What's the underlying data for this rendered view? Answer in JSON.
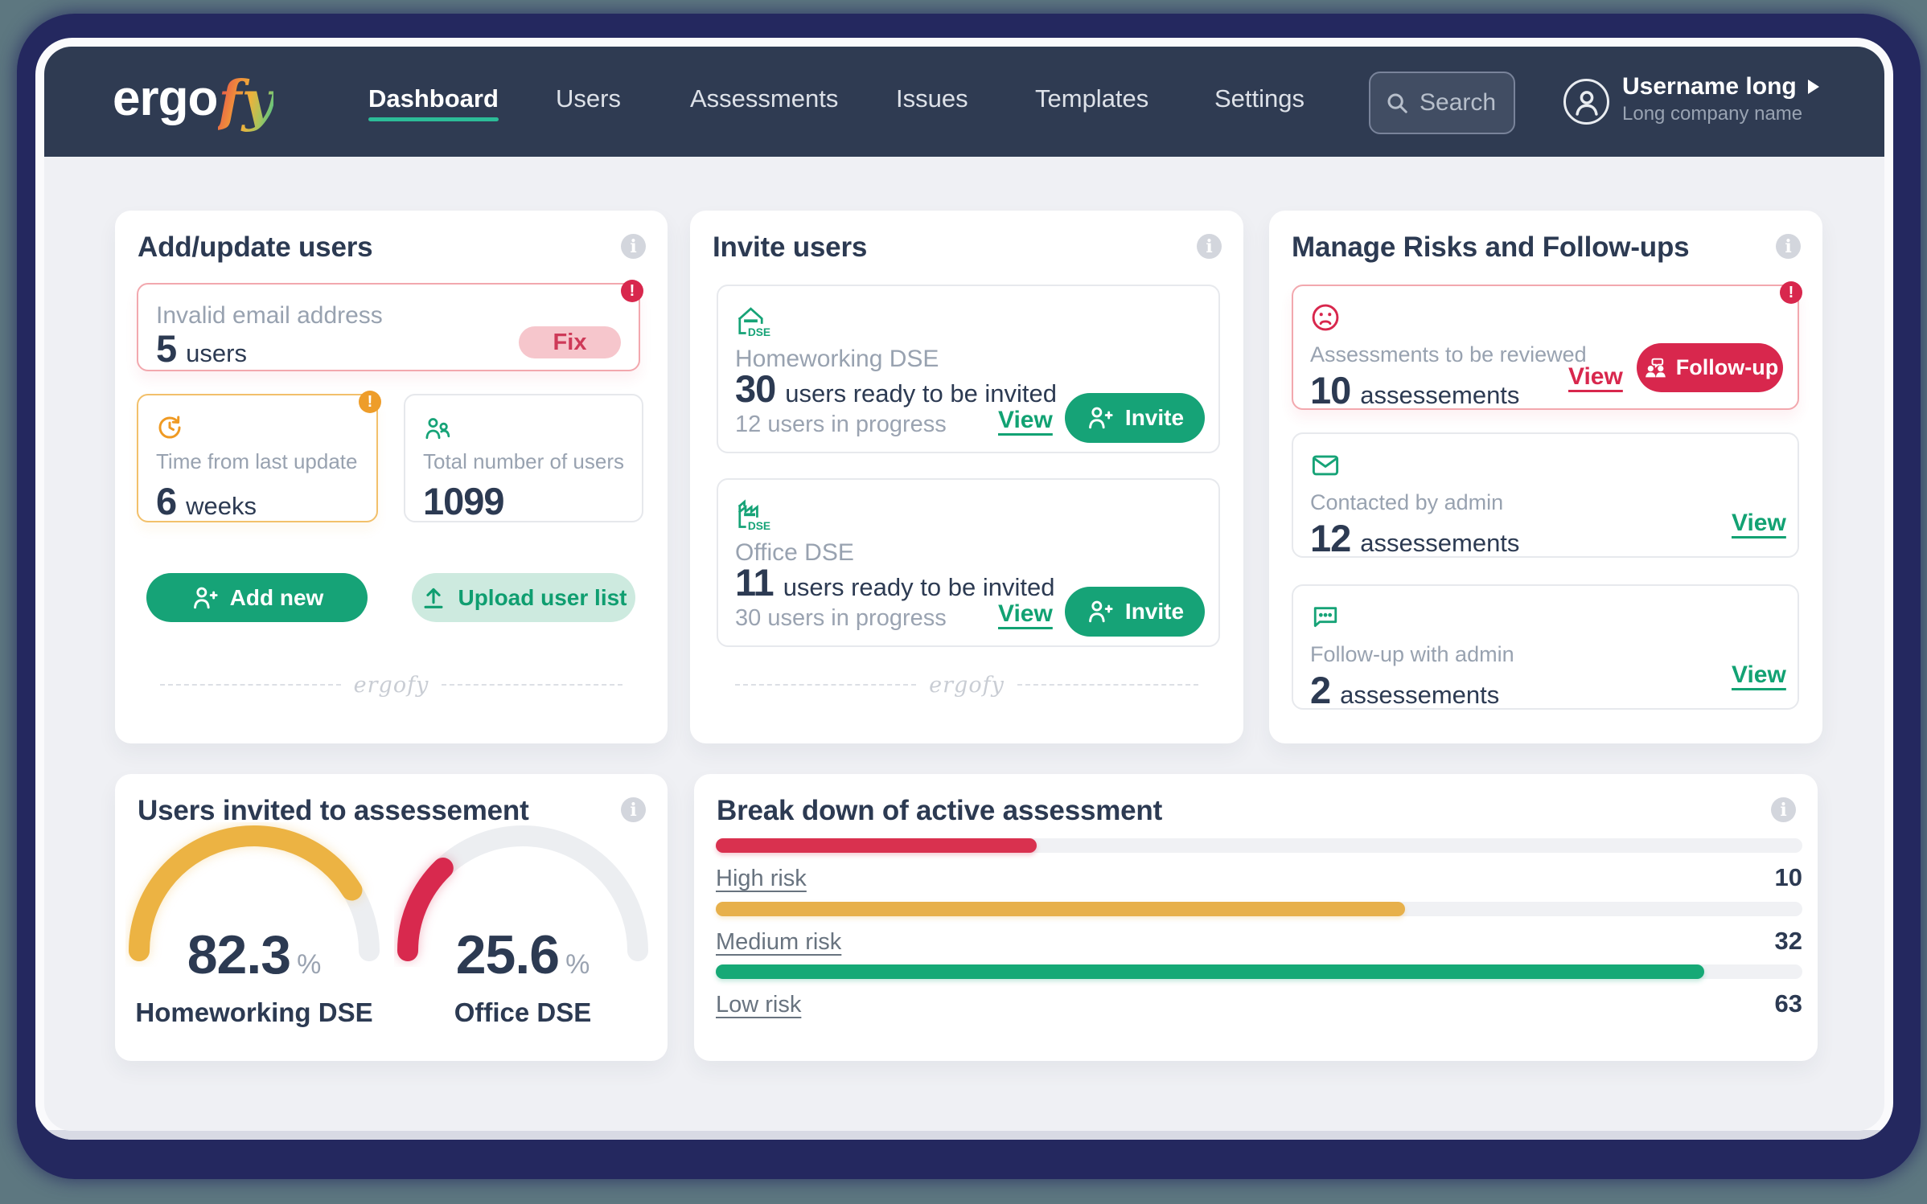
{
  "colors": {
    "page_bg": "#5d7780",
    "bezel": "#24285f",
    "navbar_bg": "#2f3b52",
    "content_bg": "#eff0f4",
    "brand_green": "#16a377",
    "accent_teal": "#2cbc98",
    "danger": "#d8274d",
    "warning": "#ee9d2a",
    "amber": "#e7b04b",
    "text_dark": "#2c3a52",
    "text_muted": "#98a2b0"
  },
  "navbar": {
    "logo": {
      "text_main": "ergo",
      "text_accent": "fy"
    },
    "items": [
      {
        "label": "Dashboard",
        "active": true
      },
      {
        "label": "Users",
        "active": false
      },
      {
        "label": "Assessments",
        "active": false
      },
      {
        "label": "Issues",
        "active": false
      },
      {
        "label": "Templates",
        "active": false
      },
      {
        "label": "Settings",
        "active": false
      }
    ],
    "search": {
      "placeholder": "Search"
    },
    "user": {
      "name": "Username long",
      "company": "Long company name"
    }
  },
  "cards": {
    "add_update": {
      "title": "Add/update users",
      "invalid": {
        "label": "Invalid email address",
        "value": "5",
        "unit": "users",
        "action": "Fix"
      },
      "last_update": {
        "label": "Time from last update",
        "value": "6",
        "unit": "weeks"
      },
      "total_users": {
        "label": "Total number of users",
        "value": "1099"
      },
      "add_new_label": "Add new",
      "upload_label": "Upload user list",
      "footer_logo": "ergofy"
    },
    "invite": {
      "title": "Invite users",
      "items": [
        {
          "name": "Homeworking DSE",
          "value": "30",
          "value_label": "users ready to be invited",
          "progress": "12 users in progress",
          "view_label": "View",
          "invite_label": "Invite"
        },
        {
          "name": "Office DSE",
          "value": "11",
          "value_label": "users ready to be invited",
          "progress": "30 users in progress",
          "view_label": "View",
          "invite_label": "Invite"
        }
      ],
      "footer_logo": "ergofy"
    },
    "risks": {
      "title": "Manage Risks and Follow-ups",
      "items": [
        {
          "label": "Assessments to be reviewed",
          "value": "10",
          "unit": "assessements",
          "view_label": "View",
          "action_label": "Follow-up"
        },
        {
          "label": "Contacted by admin",
          "value": "12",
          "unit": "assessements",
          "view_label": "View"
        },
        {
          "label": "Follow-up with admin",
          "value": "2",
          "unit": "assessements",
          "view_label": "View"
        }
      ]
    }
  },
  "chart_data": [
    {
      "type": "gauge",
      "title": "Users invited to assessement",
      "shape": "semicircle",
      "range": [
        0,
        100
      ],
      "series": [
        {
          "label": "Homeworking DSE",
          "value": 82.3,
          "unit": "%",
          "color": "#ecb343"
        },
        {
          "label": "Office DSE",
          "value": 25.6,
          "unit": "%",
          "color": "#d8294e"
        }
      ],
      "track_color": "#eceef1"
    },
    {
      "type": "bar",
      "title": "Break down of active assessment",
      "orientation": "horizontal",
      "categories": [
        "High risk",
        "Medium risk",
        "Low risk"
      ],
      "values": [
        10,
        32,
        63
      ],
      "colors": [
        "#d9314f",
        "#e7b04b",
        "#16a976"
      ],
      "fill_pct": [
        29.5,
        63.4,
        91.0
      ],
      "track_color": "#f0f1f4"
    }
  ]
}
